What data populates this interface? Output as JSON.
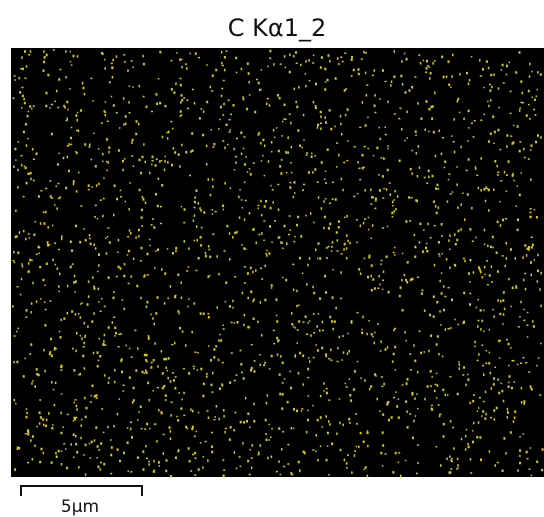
{
  "title": "C Kα1_2",
  "scale_bar": {
    "label": "5µm"
  }
}
